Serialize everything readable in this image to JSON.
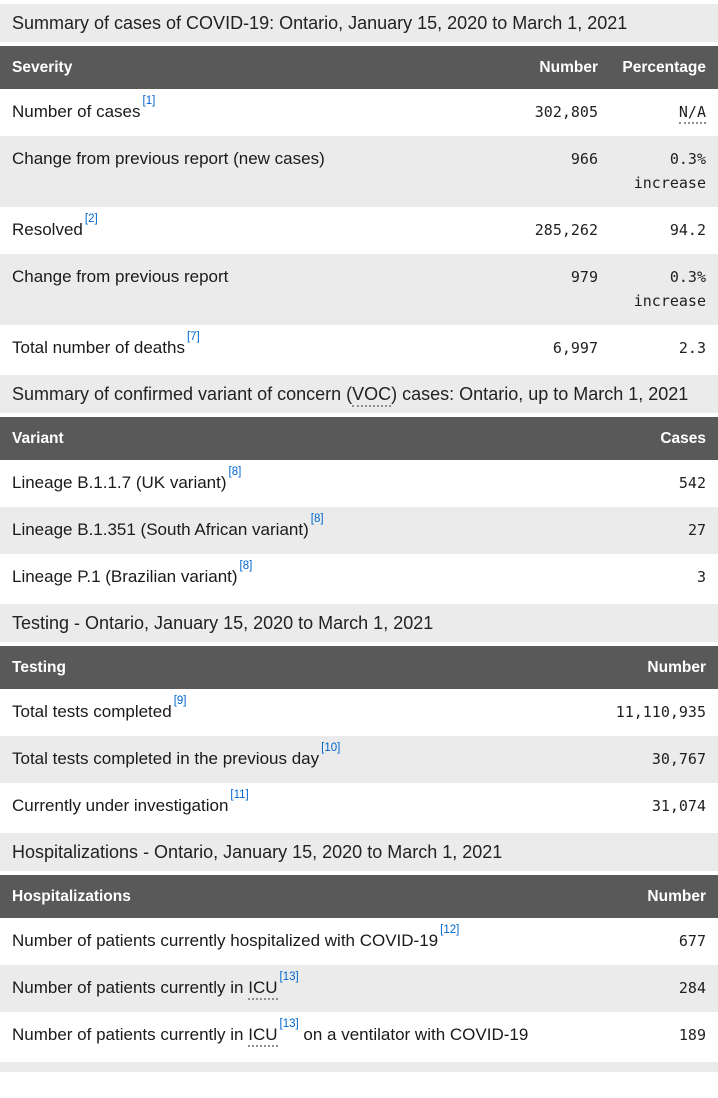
{
  "colors": {
    "header_bg": "#595959",
    "stripe_bg": "#ebebeb",
    "link_blue": "#0066cc",
    "text": "#1a1a1a"
  },
  "sections": [
    {
      "caption": {
        "pre": "Summary of cases of COVID-19: Ontario, January 15, 2020 to March 1, 2021"
      },
      "headers": [
        "Severity",
        "Number",
        "Percentage"
      ],
      "rows": [
        {
          "label": "Number of cases",
          "footnote": "[1]",
          "number": "302,805",
          "pct_abbr": "N/A"
        },
        {
          "label": "Change from previous report (new cases)",
          "number": "966",
          "pct": "0.3% increase"
        },
        {
          "label": "Resolved",
          "footnote": "[2]",
          "number": "285,262",
          "pct": "94.2"
        },
        {
          "label": "Change from previous report",
          "number": "979",
          "pct": "0.3% increase"
        },
        {
          "label": "Total number of deaths",
          "footnote": "[7]",
          "number": "6,997",
          "pct": "2.3"
        }
      ]
    },
    {
      "caption": {
        "pre": "Summary of confirmed variant of concern (",
        "abbr": "VOC",
        "post": ") cases: Ontario, up to March 1, 2021"
      },
      "headers": [
        "Variant",
        "Cases"
      ],
      "rows": [
        {
          "label": "Lineage B.1.1.7 (UK variant)",
          "footnote": "[8]",
          "number": "542"
        },
        {
          "label": "Lineage B.1.351 (South African variant)",
          "footnote": "[8]",
          "number": "27"
        },
        {
          "label": "Lineage P.1 (Brazilian variant)",
          "footnote": "[8]",
          "number": "3"
        }
      ]
    },
    {
      "caption": {
        "pre": "Testing - Ontario, January 15, 2020 to March 1, 2021"
      },
      "headers": [
        "Testing",
        "Number"
      ],
      "rows": [
        {
          "label": "Total tests completed",
          "footnote": "[9]",
          "number": "11,110,935"
        },
        {
          "label": "Total tests completed in the previous day",
          "footnote": "[10]",
          "number": "30,767"
        },
        {
          "label": "Currently under investigation",
          "footnote": "[11]",
          "number": "31,074"
        }
      ]
    },
    {
      "caption": {
        "pre": "Hospitalizations - Ontario, January 15, 2020 to March 1, 2021"
      },
      "headers": [
        "Hospitalizations",
        "Number"
      ],
      "rows": [
        {
          "label": "Number of patients currently hospitalized with COVID-19",
          "footnote": "[12]",
          "number": "677"
        },
        {
          "label_pre": "Number of patients currently in ",
          "abbr": "ICU",
          "footnote": "[13]",
          "number": "284"
        },
        {
          "label_pre": "Number of patients currently in ",
          "abbr": "ICU",
          "footnote": "[13]",
          "label_post": " on a ventilator with COVID-19",
          "number": "189"
        }
      ]
    }
  ]
}
